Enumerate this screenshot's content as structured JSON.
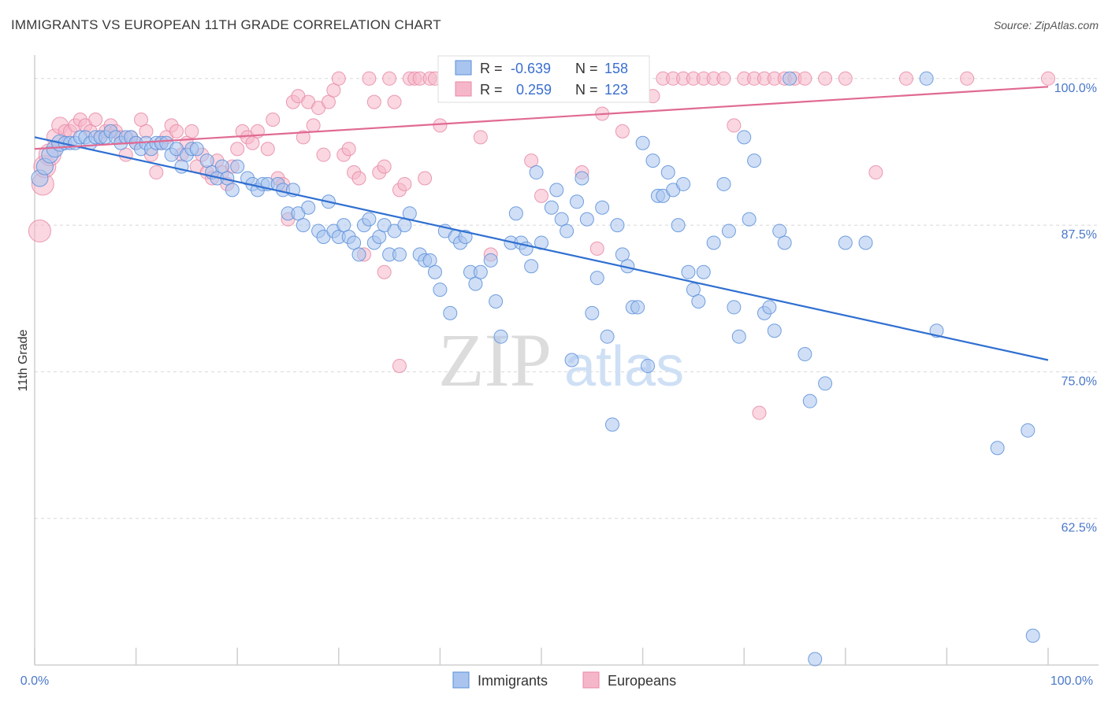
{
  "title": "IMMIGRANTS VS EUROPEAN 11TH GRADE CORRELATION CHART",
  "source": "Source: ZipAtlas.com",
  "watermark": {
    "zip": "ZIP",
    "atlas": "atlas"
  },
  "colors": {
    "immigrants_fill": "#a9c4ee",
    "immigrants_stroke": "#5b8fd9",
    "immigrants_line": "#2f6fd1",
    "europeans_fill": "#f6b6c9",
    "europeans_stroke": "#e78aa6",
    "europeans_line": "#e06a92",
    "tick_text": "#4a78c8",
    "grid": "#d8d8d8"
  },
  "legend": {
    "r_label": "R =",
    "n_label": "N =",
    "immigrants": {
      "r": "-0.639",
      "n": "158"
    },
    "europeans": {
      "r": "0.259",
      "n": "123"
    }
  },
  "chart_data": {
    "type": "scatter",
    "xlabel": "",
    "ylabel": "11th Grade",
    "xlim": [
      0,
      100
    ],
    "ylim": [
      50,
      102
    ],
    "x_ticks": [
      "0.0%",
      "100.0%"
    ],
    "y_ticks": [
      {
        "value": 100,
        "label": "100.0%"
      },
      {
        "value": 87.5,
        "label": "87.5%"
      },
      {
        "value": 75,
        "label": "75.0%"
      },
      {
        "value": 62.5,
        "label": "62.5%"
      }
    ],
    "grid": true,
    "legend_position": "bottom-center",
    "series": [
      {
        "name": "Immigrants",
        "trend": {
          "x": [
            0,
            100
          ],
          "y": [
            95.0,
            76.0
          ]
        },
        "points": [
          [
            0.5,
            91.5
          ],
          [
            1,
            92.5
          ],
          [
            1.5,
            93.5
          ],
          [
            2,
            94.0
          ],
          [
            2.5,
            94.5
          ],
          [
            3,
            94.5
          ],
          [
            3.5,
            94.5
          ],
          [
            4,
            94.5
          ],
          [
            4.5,
            95.0
          ],
          [
            5,
            95.0
          ],
          [
            5.5,
            94.5
          ],
          [
            6,
            95.0
          ],
          [
            6.5,
            95.0
          ],
          [
            7,
            95.0
          ],
          [
            7.5,
            95.5
          ],
          [
            8,
            95.0
          ],
          [
            8.5,
            94.5
          ],
          [
            9,
            95.0
          ],
          [
            9.5,
            95.0
          ],
          [
            10,
            94.5
          ],
          [
            10.5,
            94.0
          ],
          [
            11,
            94.5
          ],
          [
            11.5,
            94.0
          ],
          [
            12,
            94.5
          ],
          [
            12.5,
            94.5
          ],
          [
            13,
            94.5
          ],
          [
            13.5,
            93.5
          ],
          [
            14,
            94.0
          ],
          [
            14.5,
            92.5
          ],
          [
            15,
            93.5
          ],
          [
            15.5,
            94.0
          ],
          [
            16,
            94.0
          ],
          [
            17,
            93.0
          ],
          [
            17.5,
            92.0
          ],
          [
            18,
            91.5
          ],
          [
            18.5,
            92.5
          ],
          [
            19,
            91.5
          ],
          [
            19.5,
            90.5
          ],
          [
            20,
            92.5
          ],
          [
            21,
            91.5
          ],
          [
            21.5,
            91.0
          ],
          [
            22,
            90.5
          ],
          [
            22.5,
            91.0
          ],
          [
            23,
            91.0
          ],
          [
            24,
            91.0
          ],
          [
            24.5,
            90.5
          ],
          [
            25,
            88.5
          ],
          [
            25.5,
            90.5
          ],
          [
            26,
            88.5
          ],
          [
            26.5,
            87.5
          ],
          [
            27,
            89.0
          ],
          [
            28,
            87.0
          ],
          [
            28.5,
            86.5
          ],
          [
            29,
            89.5
          ],
          [
            29.5,
            87.0
          ],
          [
            30,
            86.5
          ],
          [
            30.5,
            87.5
          ],
          [
            31,
            86.5
          ],
          [
            31.5,
            86.0
          ],
          [
            32,
            85.0
          ],
          [
            32.5,
            87.5
          ],
          [
            33,
            88.0
          ],
          [
            33.5,
            86.0
          ],
          [
            34,
            86.5
          ],
          [
            34.5,
            87.5
          ],
          [
            35,
            85.0
          ],
          [
            35.5,
            87.0
          ],
          [
            36,
            85.0
          ],
          [
            36.5,
            87.5
          ],
          [
            37,
            88.5
          ],
          [
            38,
            85.0
          ],
          [
            38.5,
            84.5
          ],
          [
            39,
            84.5
          ],
          [
            39.5,
            83.5
          ],
          [
            40,
            82.0
          ],
          [
            40.5,
            87.0
          ],
          [
            41,
            80.0
          ],
          [
            41.5,
            86.5
          ],
          [
            42,
            86.0
          ],
          [
            42.5,
            86.5
          ],
          [
            43,
            83.5
          ],
          [
            43.5,
            82.5
          ],
          [
            44,
            83.5
          ],
          [
            45,
            84.5
          ],
          [
            45.5,
            81.0
          ],
          [
            46,
            78.0
          ],
          [
            47,
            86.0
          ],
          [
            47.5,
            88.5
          ],
          [
            48,
            86.0
          ],
          [
            48.5,
            85.5
          ],
          [
            49,
            84.0
          ],
          [
            49.5,
            92.0
          ],
          [
            50,
            86.0
          ],
          [
            51,
            89.0
          ],
          [
            51.5,
            90.5
          ],
          [
            52,
            88.0
          ],
          [
            52.5,
            87.0
          ],
          [
            53,
            76.0
          ],
          [
            53.5,
            89.5
          ],
          [
            54,
            91.5
          ],
          [
            54.5,
            88.0
          ],
          [
            55,
            80.0
          ],
          [
            55.5,
            83.0
          ],
          [
            56,
            89.0
          ],
          [
            56.5,
            78.0
          ],
          [
            57,
            70.5
          ],
          [
            57.5,
            87.5
          ],
          [
            58,
            85.0
          ],
          [
            58.5,
            84.0
          ],
          [
            59,
            80.5
          ],
          [
            59.5,
            80.5
          ],
          [
            60,
            94.5
          ],
          [
            60.5,
            75.5
          ],
          [
            61,
            93.0
          ],
          [
            61.5,
            90.0
          ],
          [
            62,
            90.0
          ],
          [
            62.5,
            92.0
          ],
          [
            63,
            90.5
          ],
          [
            63.5,
            87.5
          ],
          [
            64,
            91.0
          ],
          [
            64.5,
            83.5
          ],
          [
            65,
            82.0
          ],
          [
            65.5,
            81.0
          ],
          [
            66,
            83.5
          ],
          [
            67,
            86.0
          ],
          [
            68,
            91.0
          ],
          [
            68.5,
            87.0
          ],
          [
            69,
            80.5
          ],
          [
            69.5,
            78.0
          ],
          [
            70,
            95.0
          ],
          [
            70.5,
            88.0
          ],
          [
            71,
            93.0
          ],
          [
            72,
            80.0
          ],
          [
            72.5,
            80.5
          ],
          [
            73,
            78.5
          ],
          [
            73.5,
            87.0
          ],
          [
            74,
            86.0
          ],
          [
            74.5,
            100.0
          ],
          [
            76,
            76.5
          ],
          [
            76.5,
            72.5
          ],
          [
            77,
            50.5
          ],
          [
            78,
            74.0
          ],
          [
            80,
            86.0
          ],
          [
            82,
            86.0
          ],
          [
            88,
            100.0
          ],
          [
            89,
            78.5
          ],
          [
            95,
            68.5
          ],
          [
            98,
            70.0
          ],
          [
            98.5,
            52.5
          ]
        ]
      },
      {
        "name": "Europeans",
        "trend": {
          "x": [
            0,
            100
          ],
          "y": [
            94.0,
            99.3
          ]
        },
        "points": [
          [
            0.5,
            87.0
          ],
          [
            0.8,
            91.0
          ],
          [
            1,
            92.5
          ],
          [
            1.5,
            93.5
          ],
          [
            2,
            95.0
          ],
          [
            2.5,
            96.0
          ],
          [
            3,
            95.5
          ],
          [
            3.5,
            95.5
          ],
          [
            4,
            96.0
          ],
          [
            4.5,
            96.5
          ],
          [
            5,
            96.0
          ],
          [
            5.5,
            95.5
          ],
          [
            6,
            96.5
          ],
          [
            6.5,
            95.0
          ],
          [
            7,
            95.5
          ],
          [
            7.5,
            96.0
          ],
          [
            8,
            95.5
          ],
          [
            8.5,
            95.0
          ],
          [
            9,
            93.5
          ],
          [
            9.5,
            95.0
          ],
          [
            10,
            94.5
          ],
          [
            10.5,
            96.5
          ],
          [
            11,
            95.5
          ],
          [
            11.5,
            93.5
          ],
          [
            12,
            92.0
          ],
          [
            12.5,
            94.5
          ],
          [
            13,
            95.0
          ],
          [
            13.5,
            96.0
          ],
          [
            14,
            95.5
          ],
          [
            14.5,
            93.5
          ],
          [
            15,
            94.5
          ],
          [
            15.5,
            95.5
          ],
          [
            16,
            92.5
          ],
          [
            16.5,
            93.5
          ],
          [
            17,
            92.0
          ],
          [
            17.5,
            91.5
          ],
          [
            18,
            93.0
          ],
          [
            18.5,
            92.0
          ],
          [
            19,
            91.0
          ],
          [
            19.5,
            92.5
          ],
          [
            20,
            94.0
          ],
          [
            20.5,
            95.5
          ],
          [
            21,
            95.0
          ],
          [
            21.5,
            94.5
          ],
          [
            22,
            95.5
          ],
          [
            23,
            94.0
          ],
          [
            23.5,
            96.5
          ],
          [
            24,
            91.5
          ],
          [
            24.5,
            91.0
          ],
          [
            25,
            88.0
          ],
          [
            25.5,
            98.0
          ],
          [
            26,
            98.5
          ],
          [
            26.5,
            95.0
          ],
          [
            27,
            98.0
          ],
          [
            27.5,
            96.0
          ],
          [
            28,
            97.5
          ],
          [
            28.5,
            93.5
          ],
          [
            29,
            98.0
          ],
          [
            29.5,
            99.0
          ],
          [
            30,
            100.0
          ],
          [
            30.5,
            93.5
          ],
          [
            31,
            94.0
          ],
          [
            31.5,
            92.0
          ],
          [
            32,
            91.5
          ],
          [
            32.5,
            85.0
          ],
          [
            33,
            100.0
          ],
          [
            33.5,
            98.0
          ],
          [
            34,
            92.0
          ],
          [
            34.5,
            92.5
          ],
          [
            35,
            100.0
          ],
          [
            35.5,
            98.0
          ],
          [
            36,
            90.5
          ],
          [
            36.5,
            91.0
          ],
          [
            37,
            100.0
          ],
          [
            37.5,
            100.0
          ],
          [
            38,
            100.0
          ],
          [
            38.5,
            91.5
          ],
          [
            39,
            100.0
          ],
          [
            39.5,
            100.0
          ],
          [
            40,
            96.0
          ],
          [
            40.5,
            100.0
          ],
          [
            41,
            100.0
          ],
          [
            41.5,
            100.0
          ],
          [
            42,
            100.0
          ],
          [
            42.5,
            100.0
          ],
          [
            43,
            100.0
          ],
          [
            44,
            95.0
          ],
          [
            45,
            85.0
          ],
          [
            46,
            100.0
          ],
          [
            47,
            100.0
          ],
          [
            48,
            100.0
          ],
          [
            49,
            93.0
          ],
          [
            50,
            90.0
          ],
          [
            51,
            100.0
          ],
          [
            52,
            100.0
          ],
          [
            53,
            100.0
          ],
          [
            54,
            92.0
          ],
          [
            55,
            100.0
          ],
          [
            55.5,
            85.5
          ],
          [
            56,
            97.0
          ],
          [
            57,
            100.0
          ],
          [
            57.5,
            100.0
          ],
          [
            58,
            95.5
          ],
          [
            59,
            100.0
          ],
          [
            60,
            100.0
          ],
          [
            61,
            98.5
          ],
          [
            62,
            100.0
          ],
          [
            63,
            100.0
          ],
          [
            64,
            100.0
          ],
          [
            65,
            100.0
          ],
          [
            66,
            100.0
          ],
          [
            67,
            100.0
          ],
          [
            68,
            100.0
          ],
          [
            69,
            96.0
          ],
          [
            70,
            100.0
          ],
          [
            71,
            100.0
          ],
          [
            72,
            100.0
          ],
          [
            73,
            100.0
          ],
          [
            74,
            100.0
          ],
          [
            75,
            100.0
          ],
          [
            76,
            100.0
          ],
          [
            78,
            100.0
          ],
          [
            80,
            100.0
          ],
          [
            83,
            92.0
          ],
          [
            86,
            100.0
          ],
          [
            92,
            100.0
          ],
          [
            100,
            100.0
          ],
          [
            36,
            75.5
          ],
          [
            71.5,
            71.5
          ],
          [
            34.5,
            83.5
          ]
        ]
      }
    ]
  },
  "bottom_legend": [
    "Immigrants",
    "Europeans"
  ]
}
